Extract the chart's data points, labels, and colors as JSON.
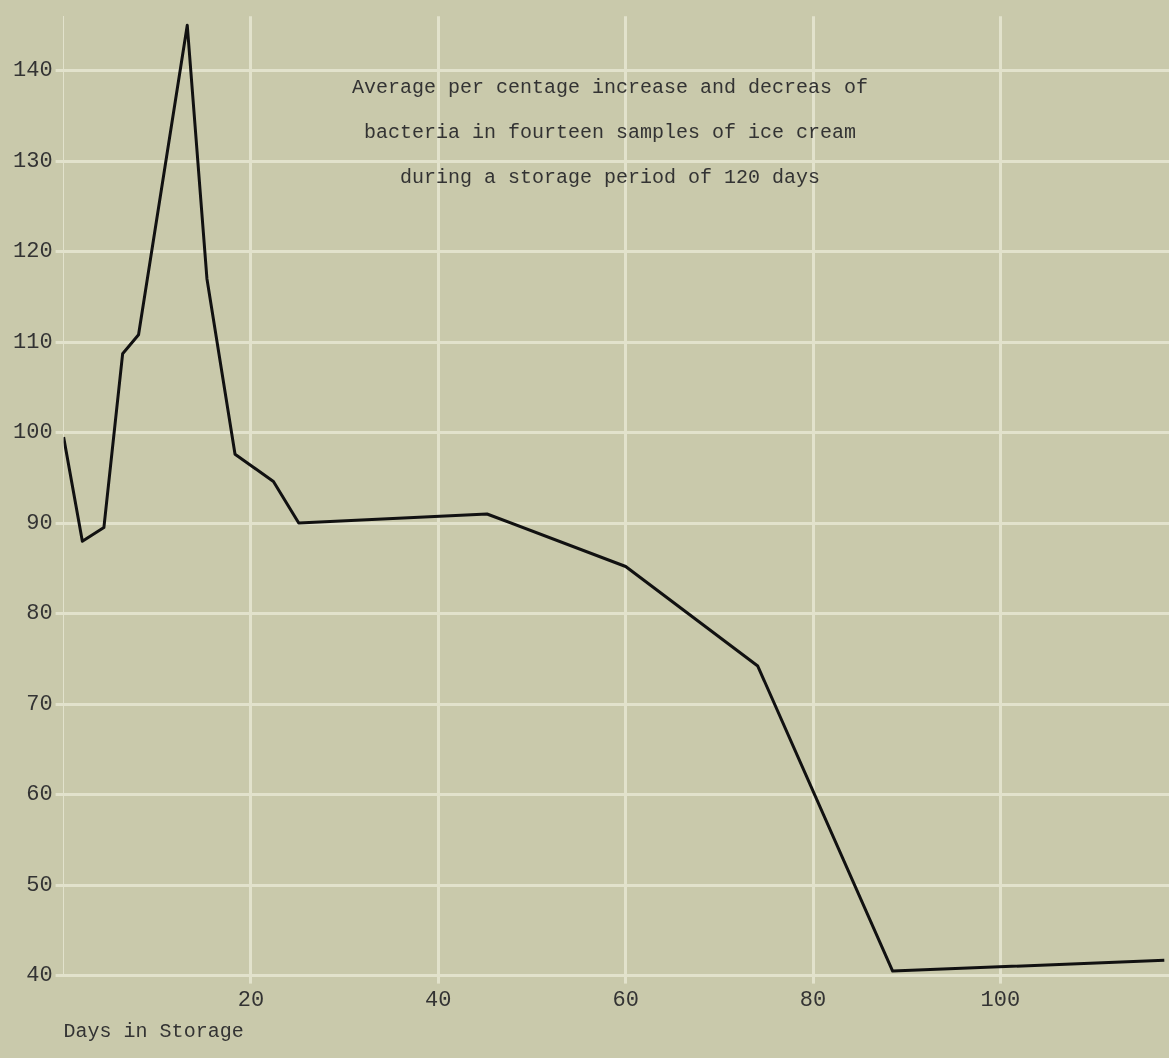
{
  "chart_data": {
    "type": "line",
    "title": "Average per centage increase and decreas of bacteria in fourteen samples of ice cream during a storage period of 120 days",
    "xlabel": "Days in Storage",
    "x": [
      0,
      2,
      4.3,
      6.3,
      8,
      13.2,
      15.3,
      18.3,
      22.4,
      25.1,
      45.2,
      60,
      74.1,
      88.5,
      117.5
    ],
    "series": [
      {
        "color": "#111111",
        "values": [
          99.5,
          88,
          89.5,
          108.7,
          110.8,
          145,
          117,
          97.6,
          94.6,
          90,
          91,
          85.2,
          74.2,
          40.5,
          41.7
        ]
      }
    ],
    "xlim": [
      0,
      118
    ],
    "xticks": [
      20,
      40,
      60,
      80,
      100
    ],
    "ylim": [
      40,
      146
    ],
    "yticks": [
      40,
      50,
      60,
      70,
      80,
      90,
      100,
      110,
      120,
      130,
      140
    ],
    "grid": true,
    "legend": false,
    "marker": "none",
    "line_style": "solid"
  }
}
